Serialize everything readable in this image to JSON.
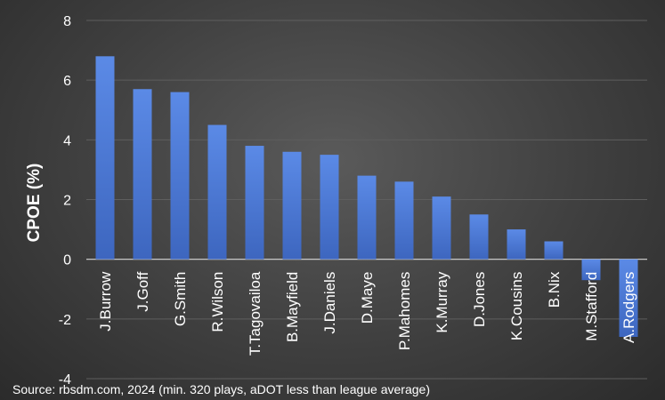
{
  "chart_data": {
    "type": "bar",
    "categories": [
      "J.Burrow",
      "J.Goff",
      "G.Smith",
      "R.Wilson",
      "T.Tagovailoa",
      "B.Mayfield",
      "J.Daniels",
      "D.Maye",
      "P.Mahomes",
      "K.Murray",
      "D.Jones",
      "K.Cousins",
      "B.Nix",
      "M.Stafford",
      "A.Rodgers"
    ],
    "values": [
      6.8,
      5.7,
      5.6,
      4.5,
      3.8,
      3.6,
      3.5,
      2.8,
      2.6,
      2.1,
      1.5,
      1.0,
      0.6,
      -0.7,
      -2.6
    ],
    "ylabel": "CPOE (%)",
    "xlabel": "",
    "ylim": [
      -4,
      8
    ],
    "yticks": [
      -4,
      -2,
      0,
      2,
      4,
      6,
      8
    ],
    "ytick_labels": [
      "-4",
      "-2",
      "0",
      "2",
      "4",
      "6",
      "8"
    ],
    "grid": true,
    "bar_color": "#4a78d4",
    "source_note": "Source: rbsdm.com, 2024 (min. 320 plays, aDOT less than league average)"
  }
}
